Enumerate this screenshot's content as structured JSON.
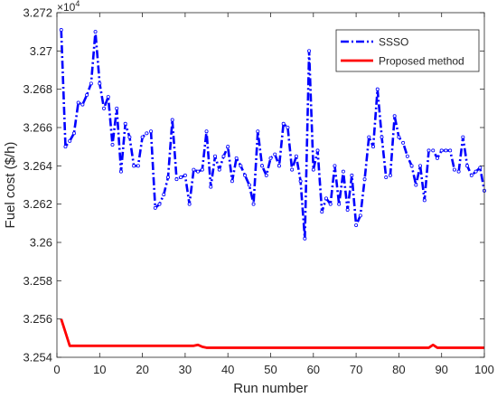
{
  "chart_data": {
    "type": "line",
    "xlabel": "Run number",
    "ylabel": "Fuel cost ($/h)",
    "y_multiplier": {
      "base": "×10",
      "exponent": "4"
    },
    "xlim": [
      0,
      100
    ],
    "ylim": [
      3.254,
      3.272
    ],
    "x_ticks": [
      0,
      10,
      20,
      30,
      40,
      50,
      60,
      70,
      80,
      90,
      100
    ],
    "y_ticks": [
      3.254,
      3.256,
      3.258,
      3.26,
      3.262,
      3.264,
      3.266,
      3.268,
      3.27,
      3.272
    ],
    "y_tick_labels": [
      "3.254",
      "3.256",
      "3.258",
      "3.26",
      "3.262",
      "3.264",
      "3.266",
      "3.268",
      "3.27",
      "3.272"
    ],
    "x_tick_labels": [
      "0",
      "10",
      "20",
      "30",
      "40",
      "50",
      "60",
      "70",
      "80",
      "90",
      "100"
    ],
    "grid": false,
    "legend_position": "top-right",
    "series": [
      {
        "name": "SSSO",
        "color": "#0000ff",
        "style": "dash-dot-markers",
        "x": [
          1,
          2,
          3,
          4,
          5,
          6,
          7,
          8,
          9,
          10,
          11,
          12,
          13,
          14,
          15,
          16,
          17,
          18,
          19,
          20,
          21,
          22,
          23,
          24,
          25,
          26,
          27,
          28,
          29,
          30,
          31,
          32,
          33,
          34,
          35,
          36,
          37,
          38,
          39,
          40,
          41,
          42,
          43,
          44,
          45,
          46,
          47,
          48,
          49,
          50,
          51,
          52,
          53,
          54,
          55,
          56,
          57,
          58,
          59,
          60,
          61,
          62,
          63,
          64,
          65,
          66,
          67,
          68,
          69,
          70,
          71,
          72,
          73,
          74,
          75,
          76,
          77,
          78,
          79,
          80,
          81,
          82,
          83,
          84,
          85,
          86,
          87,
          88,
          89,
          90,
          91,
          92,
          93,
          94,
          95,
          96,
          97,
          98,
          99,
          100
        ],
        "values": [
          3.2711,
          3.265,
          3.2653,
          3.2657,
          3.2673,
          3.2672,
          3.2677,
          3.2683,
          3.271,
          3.2683,
          3.267,
          3.2676,
          3.2651,
          3.267,
          3.2637,
          3.2662,
          3.2655,
          3.264,
          3.264,
          3.2655,
          3.2657,
          3.2658,
          3.2618,
          3.262,
          3.2625,
          3.2634,
          3.2664,
          3.2633,
          3.2634,
          3.2635,
          3.262,
          3.2638,
          3.2637,
          3.2638,
          3.2658,
          3.2629,
          3.2645,
          3.2638,
          3.2645,
          3.265,
          3.2632,
          3.2644,
          3.264,
          3.2635,
          3.263,
          3.262,
          3.2658,
          3.264,
          3.2635,
          3.2644,
          3.2646,
          3.264,
          3.2662,
          3.266,
          3.2638,
          3.2645,
          3.2632,
          3.2602,
          3.27,
          3.2638,
          3.2648,
          3.2616,
          3.2623,
          3.262,
          3.264,
          3.262,
          3.2637,
          3.2617,
          3.2635,
          3.2609,
          3.2614,
          3.2633,
          3.2655,
          3.265,
          3.268,
          3.2655,
          3.2634,
          3.2635,
          3.2666,
          3.2655,
          3.2652,
          3.2645,
          3.264,
          3.263,
          3.264,
          3.2622,
          3.2648,
          3.2648,
          3.2644,
          3.2648,
          3.2648,
          3.2648,
          3.2638,
          3.2637,
          3.2655,
          3.264,
          3.2635,
          3.2637,
          3.2639,
          3.2627
        ]
      },
      {
        "name": "Proposed method",
        "color": "#ff0000",
        "style": "solid",
        "x": [
          1,
          2,
          3,
          4,
          5,
          6,
          7,
          8,
          9,
          10,
          11,
          12,
          13,
          14,
          15,
          16,
          17,
          18,
          19,
          20,
          21,
          22,
          23,
          24,
          25,
          26,
          27,
          28,
          29,
          30,
          31,
          32,
          33,
          34,
          35,
          36,
          37,
          38,
          39,
          40,
          41,
          42,
          43,
          44,
          45,
          46,
          47,
          48,
          49,
          50,
          51,
          52,
          53,
          54,
          55,
          56,
          57,
          58,
          59,
          60,
          61,
          62,
          63,
          64,
          65,
          66,
          67,
          68,
          69,
          70,
          71,
          72,
          73,
          74,
          75,
          76,
          77,
          78,
          79,
          80,
          81,
          82,
          83,
          84,
          85,
          86,
          87,
          88,
          89,
          90,
          91,
          92,
          93,
          94,
          95,
          96,
          97,
          98,
          99,
          100
        ],
        "values": [
          3.256,
          3.2553,
          3.2546,
          3.2546,
          3.2546,
          3.2546,
          3.2546,
          3.2546,
          3.2546,
          3.2546,
          3.2546,
          3.2546,
          3.2546,
          3.2546,
          3.2546,
          3.2546,
          3.2546,
          3.2546,
          3.2546,
          3.2546,
          3.2546,
          3.2546,
          3.2546,
          3.2546,
          3.2546,
          3.2546,
          3.2546,
          3.2546,
          3.2546,
          3.2546,
          3.2546,
          3.2546,
          3.25465,
          3.25455,
          3.2545,
          3.2545,
          3.2545,
          3.2545,
          3.2545,
          3.2545,
          3.2545,
          3.2545,
          3.2545,
          3.2545,
          3.2545,
          3.2545,
          3.2545,
          3.2545,
          3.2545,
          3.2545,
          3.2545,
          3.2545,
          3.2545,
          3.2545,
          3.2545,
          3.2545,
          3.2545,
          3.2545,
          3.2545,
          3.2545,
          3.2545,
          3.2545,
          3.2545,
          3.2545,
          3.2545,
          3.2545,
          3.2545,
          3.2545,
          3.2545,
          3.2545,
          3.2545,
          3.2545,
          3.2545,
          3.2545,
          3.2545,
          3.2545,
          3.2545,
          3.2545,
          3.2545,
          3.2545,
          3.2545,
          3.2545,
          3.2545,
          3.2545,
          3.2545,
          3.2545,
          3.2545,
          3.25465,
          3.2545,
          3.2545,
          3.2545,
          3.2545,
          3.2545,
          3.2545,
          3.2545,
          3.2545,
          3.2545,
          3.2545,
          3.2545,
          3.2545
        ]
      }
    ]
  }
}
